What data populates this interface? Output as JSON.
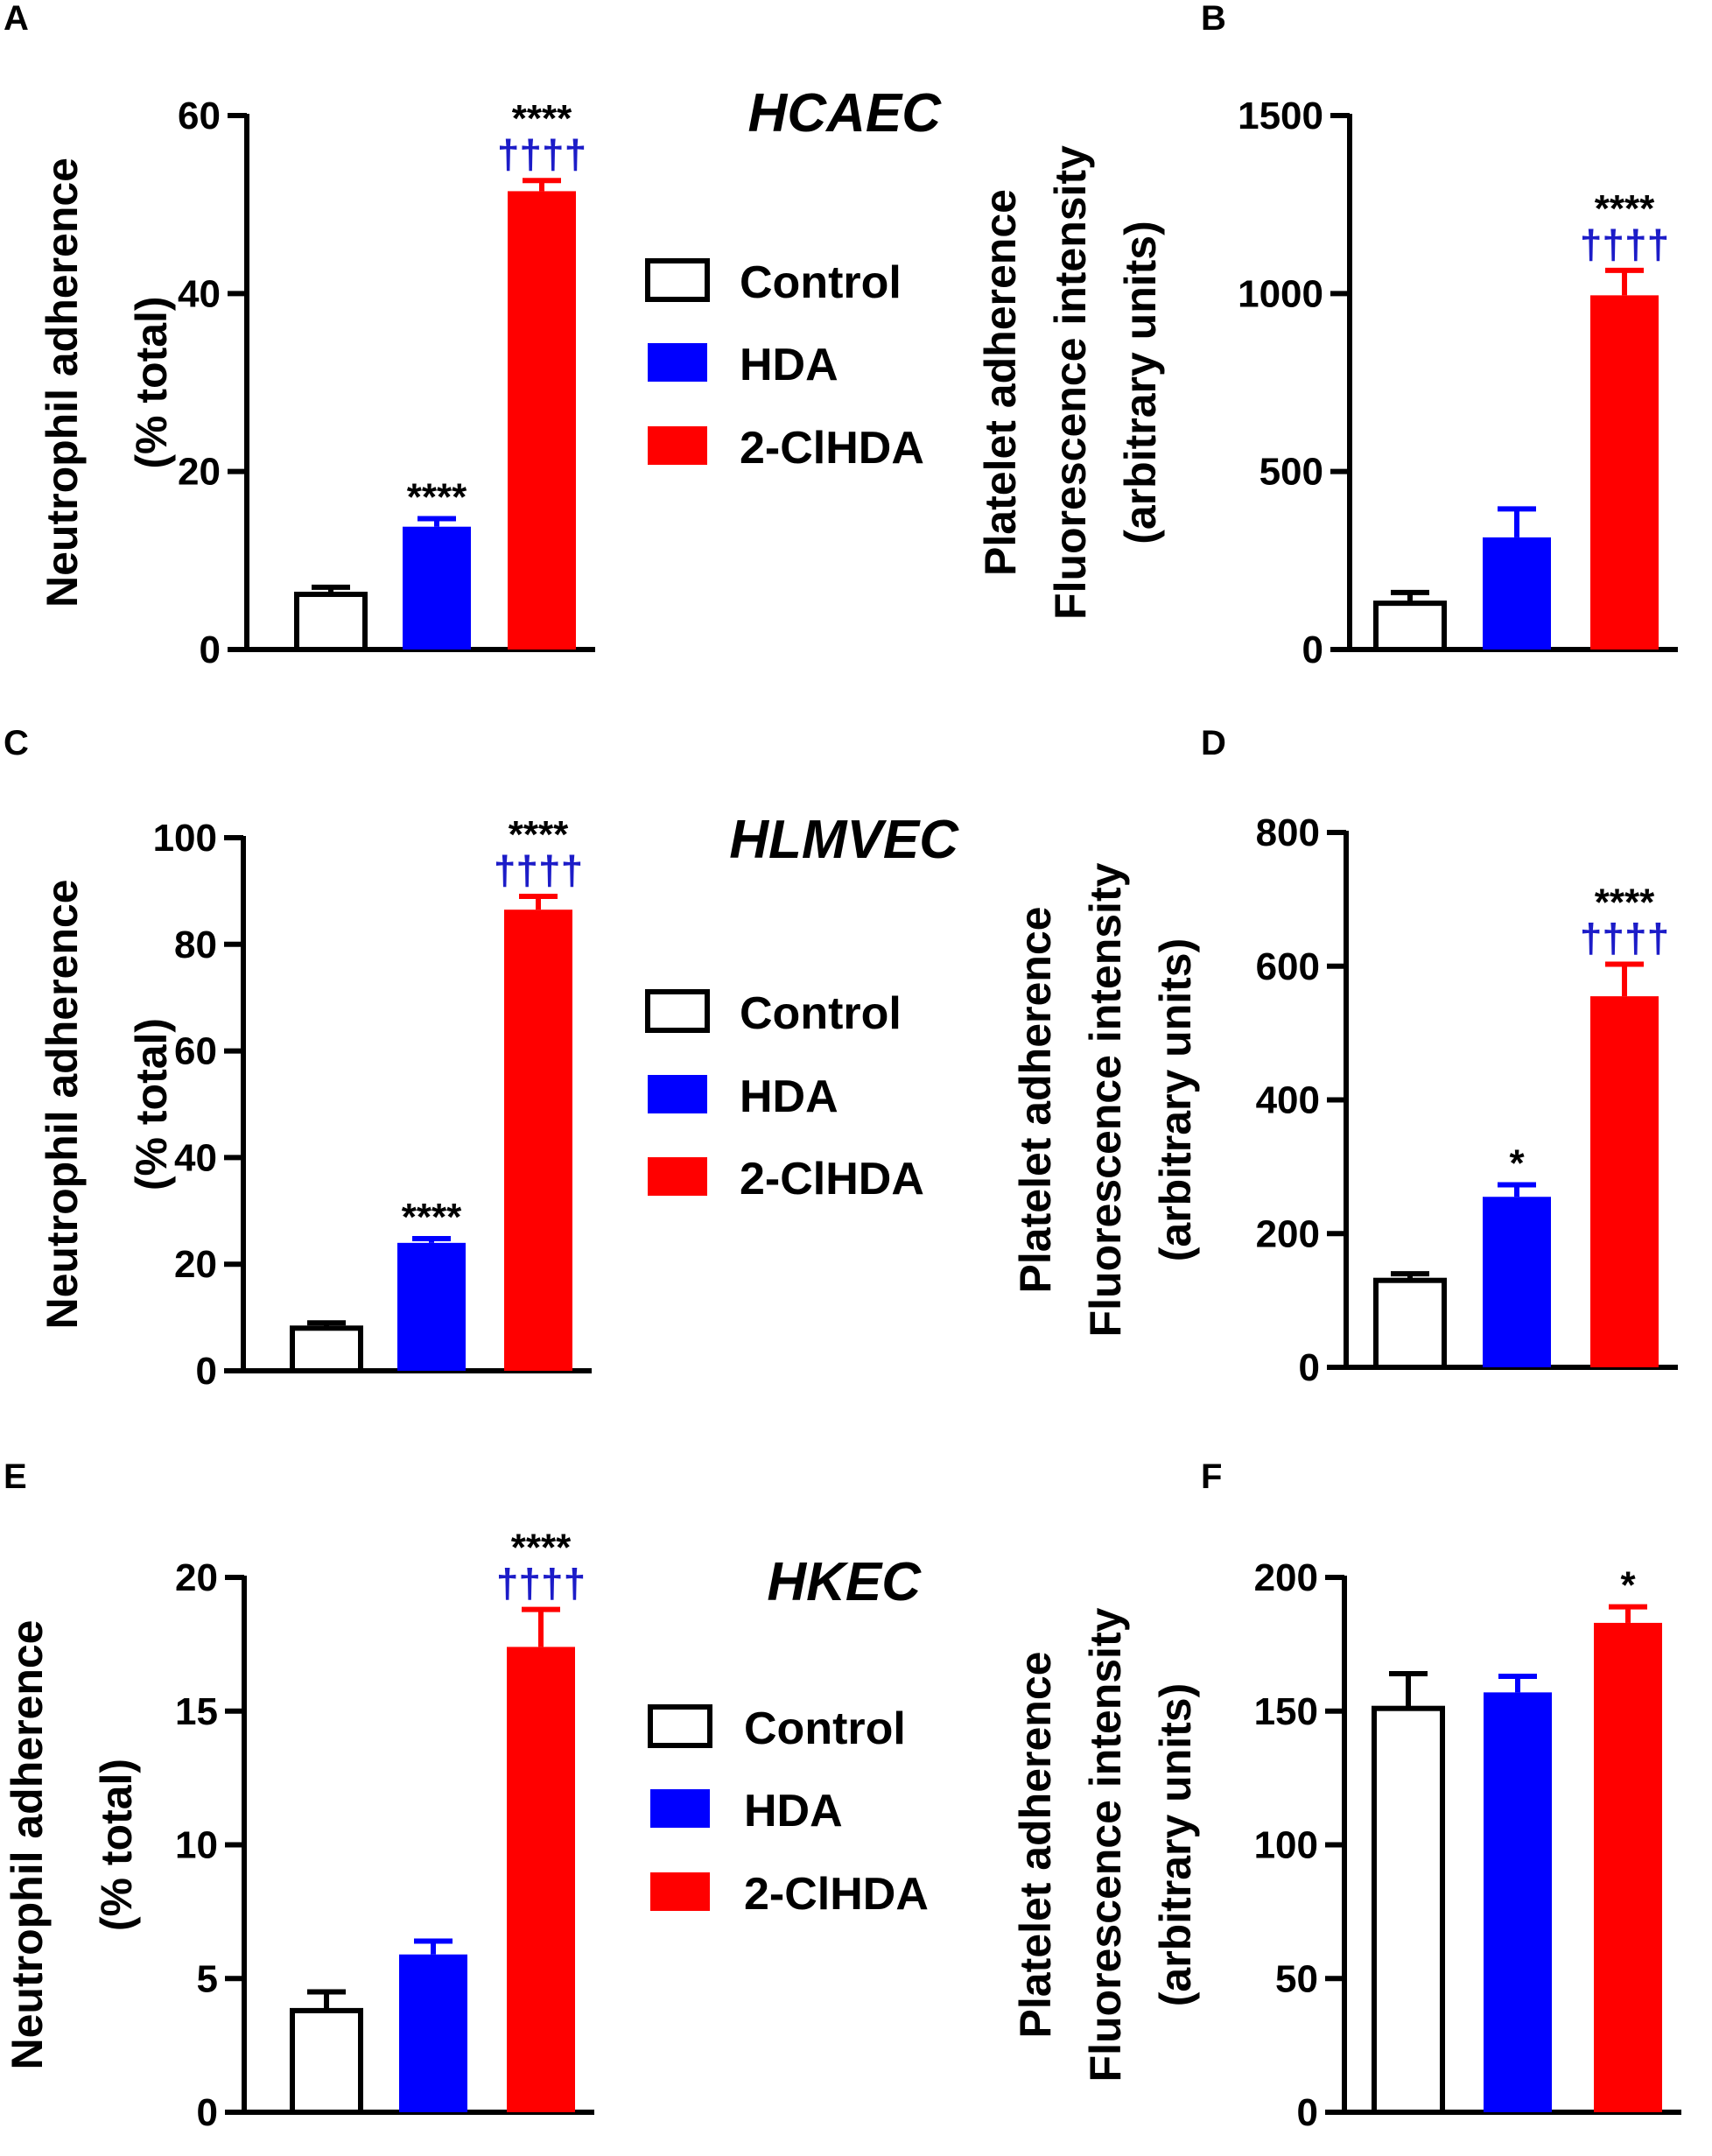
{
  "colors": {
    "control_fill": "#ffffff",
    "hda_fill": "#0000ff",
    "clhda_fill": "#ff0000",
    "star_color": "#000000",
    "dagger_color": "#1c1cc8",
    "axis_color": "#000000"
  },
  "legends": [
    {
      "items": [
        {
          "label": "Control",
          "color_key": "control_fill"
        },
        {
          "label": "HDA",
          "color_key": "hda_fill"
        },
        {
          "label": "2-ClHDA",
          "color_key": "clhda_fill"
        }
      ]
    },
    {
      "items": [
        {
          "label": "Control",
          "color_key": "control_fill"
        },
        {
          "label": "HDA",
          "color_key": "hda_fill"
        },
        {
          "label": "2-ClHDA",
          "color_key": "clhda_fill"
        }
      ]
    },
    {
      "items": [
        {
          "label": "Control",
          "color_key": "control_fill"
        },
        {
          "label": "HDA",
          "color_key": "hda_fill"
        },
        {
          "label": "2-ClHDA",
          "color_key": "clhda_fill"
        }
      ]
    }
  ],
  "cell_titles": [
    "HCAEC",
    "HLMVEC",
    "HKEC"
  ],
  "chart_data": [
    {
      "panel": "A",
      "type": "bar",
      "categories": [
        "Control",
        "HDA",
        "2-ClHDA"
      ],
      "values": [
        6.2,
        13.8,
        51.5
      ],
      "errors": [
        0.8,
        0.9,
        1.2
      ],
      "ylabel": [
        "Neutrophil adherence",
        "(% total)"
      ],
      "ylim": [
        0,
        60
      ],
      "yticks": [
        0,
        20,
        40,
        60
      ],
      "annotations": [
        {
          "bar": 1,
          "stars": "****",
          "daggers": ""
        },
        {
          "bar": 2,
          "stars": "****",
          "daggers": "††††"
        }
      ]
    },
    {
      "panel": "B",
      "type": "bar",
      "categories": [
        "Control",
        "HDA",
        "2-ClHDA"
      ],
      "values": [
        130,
        315,
        995
      ],
      "errors": [
        30,
        80,
        70
      ],
      "ylabel": [
        "Platelet adherence",
        "Fluorescence intensity",
        "(arbitrary units)"
      ],
      "ylim": [
        0,
        1500
      ],
      "yticks": [
        0,
        500,
        1000,
        1500
      ],
      "annotations": [
        {
          "bar": 2,
          "stars": "****",
          "daggers": "††††"
        }
      ]
    },
    {
      "panel": "C",
      "type": "bar",
      "categories": [
        "Control",
        "HDA",
        "2-ClHDA"
      ],
      "values": [
        8,
        24,
        86.5
      ],
      "errors": [
        1,
        0.8,
        2.5
      ],
      "ylabel": [
        "Neutrophil adherence",
        "(% total)"
      ],
      "ylim": [
        0,
        100
      ],
      "yticks": [
        0,
        20,
        40,
        60,
        80,
        100
      ],
      "annotations": [
        {
          "bar": 1,
          "stars": "****",
          "daggers": ""
        },
        {
          "bar": 2,
          "stars": "****",
          "daggers": "††††"
        }
      ]
    },
    {
      "panel": "D",
      "type": "bar",
      "categories": [
        "Control",
        "HDA",
        "2-ClHDA"
      ],
      "values": [
        130,
        255,
        555
      ],
      "errors": [
        10,
        18,
        48
      ],
      "ylabel": [
        "Platelet adherence",
        "Fluorescence intensity",
        "(arbitrary units)"
      ],
      "ylim": [
        0,
        800
      ],
      "yticks": [
        0,
        200,
        400,
        600,
        800
      ],
      "annotations": [
        {
          "bar": 1,
          "stars": "*",
          "daggers": ""
        },
        {
          "bar": 2,
          "stars": "****",
          "daggers": "††††"
        }
      ]
    },
    {
      "panel": "E",
      "type": "bar",
      "categories": [
        "Control",
        "HDA",
        "2-ClHDA"
      ],
      "values": [
        3.8,
        5.9,
        17.4
      ],
      "errors": [
        0.7,
        0.5,
        1.4
      ],
      "ylabel": [
        "Neutrophil adherence",
        "(% total)"
      ],
      "ylim": [
        0,
        20
      ],
      "yticks": [
        0,
        5,
        10,
        15,
        20
      ],
      "annotations": [
        {
          "bar": 2,
          "stars": "****",
          "daggers": "††††"
        }
      ]
    },
    {
      "panel": "F",
      "type": "bar",
      "categories": [
        "Control",
        "HDA",
        "2-ClHDA"
      ],
      "values": [
        151,
        157,
        183
      ],
      "errors": [
        13,
        6,
        6
      ],
      "ylabel": [
        "Platelet adherence",
        "Fluorescence intensity",
        "(arbitrary units)"
      ],
      "ylim": [
        0,
        200
      ],
      "yticks": [
        0,
        50,
        100,
        150,
        200
      ],
      "annotations": [
        {
          "bar": 2,
          "stars": "*",
          "daggers": ""
        }
      ]
    }
  ]
}
